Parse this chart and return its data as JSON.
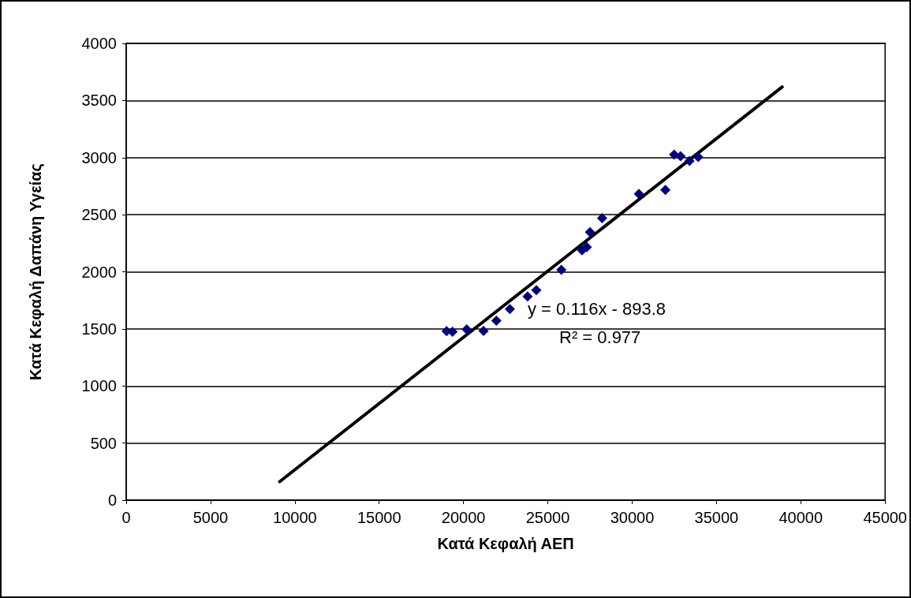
{
  "chart_data": {
    "type": "scatter",
    "xlabel": "Κατά Κεφαλή ΑΕΠ",
    "ylabel": "Κατά Κεφαλή Δαπάνη Υγείας",
    "xlim": [
      0,
      45000
    ],
    "xticks": [
      0,
      5000,
      10000,
      15000,
      20000,
      25000,
      30000,
      35000,
      40000,
      45000
    ],
    "ylim": [
      0,
      4000
    ],
    "yticks": [
      0,
      500,
      1000,
      1500,
      2000,
      2500,
      3000,
      3500,
      4000
    ],
    "grid": "y",
    "marker": "diamond",
    "series": [
      {
        "color": "#000080",
        "x": [
          19000,
          19350,
          20190,
          21190,
          21950,
          22750,
          23800,
          24320,
          25800,
          27030,
          27310,
          27500,
          28220,
          30400,
          31970,
          32490,
          32870,
          33400,
          33920
        ],
        "values": [
          1480,
          1475,
          1496,
          1482,
          1571,
          1674,
          1784,
          1839,
          2017,
          2189,
          2216,
          2347,
          2470,
          2683,
          2717,
          3026,
          3012,
          2971,
          3005
        ]
      },
      {
        "type": "line",
        "color": "#000000",
        "marker": "none",
        "line_style": "solid",
        "x": [
          9100,
          38900
        ],
        "values": [
          162,
          3619
        ]
      }
    ],
    "annotations": [
      "y = 0.116x - 893.8",
      "R² = 0.977"
    ]
  }
}
